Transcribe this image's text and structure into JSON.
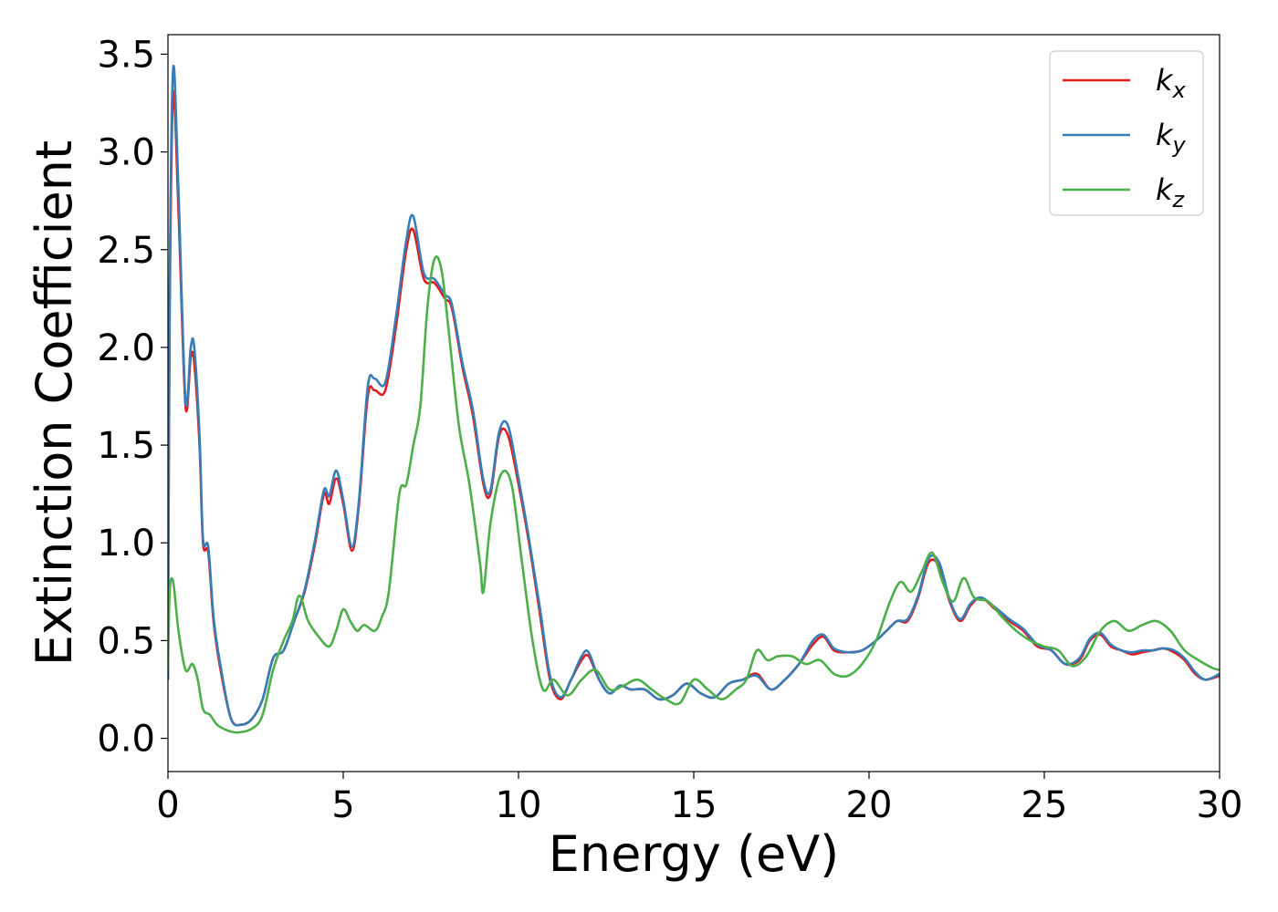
{
  "chart_data": {
    "type": "line",
    "title": "",
    "xlabel": "Energy (eV)",
    "ylabel": "Extinction Coefficient",
    "xlim": [
      0,
      30
    ],
    "ylim": [
      -0.17,
      3.6
    ],
    "xticks": [
      0,
      5,
      10,
      15,
      20,
      25,
      30
    ],
    "xtick_labels": [
      "0",
      "5",
      "10",
      "15",
      "20",
      "25",
      "30"
    ],
    "yticks": [
      0.0,
      0.5,
      1.0,
      1.5,
      2.0,
      2.5,
      3.0,
      3.5
    ],
    "ytick_labels": [
      "0.0",
      "0.5",
      "1.0",
      "1.5",
      "2.0",
      "2.5",
      "3.0",
      "3.5"
    ],
    "grid": false,
    "legend_position": "top-right",
    "series": [
      {
        "name": "k_x",
        "legend_base": "k",
        "legend_sub": "x",
        "color": "#e41a1c",
        "x": [
          0,
          0.05,
          0.15,
          0.3,
          0.5,
          0.65,
          0.75,
          0.9,
          1.0,
          1.15,
          1.3,
          1.5,
          1.8,
          2.1,
          2.4,
          2.7,
          3.0,
          3.3,
          3.6,
          3.9,
          4.2,
          4.45,
          4.6,
          4.8,
          5.0,
          5.25,
          5.45,
          5.7,
          5.9,
          6.2,
          6.5,
          6.8,
          7.0,
          7.3,
          7.6,
          7.9,
          8.1,
          8.4,
          8.7,
          9.0,
          9.2,
          9.45,
          9.7,
          10.0,
          10.3,
          10.6,
          10.9,
          11.2,
          11.5,
          11.8,
          12.0,
          12.3,
          12.6,
          12.9,
          13.2,
          13.6,
          14.0,
          14.4,
          14.8,
          15.2,
          15.6,
          16.0,
          16.4,
          16.8,
          17.2,
          17.6,
          18.0,
          18.4,
          18.7,
          19.0,
          19.4,
          19.8,
          20.2,
          20.5,
          20.8,
          21.1,
          21.4,
          21.7,
          22.0,
          22.3,
          22.6,
          22.9,
          23.2,
          23.6,
          24.0,
          24.4,
          24.8,
          25.2,
          25.6,
          26.0,
          26.3,
          26.6,
          26.9,
          27.2,
          27.5,
          27.8,
          28.1,
          28.4,
          28.7,
          29.0,
          29.3,
          29.6,
          30.0
        ],
        "y": [
          0.3,
          2.2,
          3.3,
          2.7,
          1.7,
          1.95,
          1.92,
          1.5,
          1.0,
          0.95,
          0.6,
          0.35,
          0.1,
          0.07,
          0.1,
          0.2,
          0.41,
          0.45,
          0.6,
          0.75,
          1.0,
          1.25,
          1.2,
          1.33,
          1.2,
          0.96,
          1.2,
          1.75,
          1.78,
          1.78,
          2.1,
          2.5,
          2.6,
          2.35,
          2.33,
          2.25,
          2.2,
          1.9,
          1.65,
          1.3,
          1.25,
          1.55,
          1.55,
          1.3,
          1.0,
          0.65,
          0.3,
          0.2,
          0.3,
          0.4,
          0.42,
          0.3,
          0.23,
          0.27,
          0.25,
          0.25,
          0.2,
          0.22,
          0.28,
          0.23,
          0.21,
          0.28,
          0.3,
          0.33,
          0.25,
          0.3,
          0.38,
          0.48,
          0.52,
          0.45,
          0.44,
          0.45,
          0.5,
          0.55,
          0.6,
          0.6,
          0.72,
          0.9,
          0.88,
          0.7,
          0.6,
          0.68,
          0.72,
          0.66,
          0.6,
          0.55,
          0.47,
          0.45,
          0.38,
          0.4,
          0.5,
          0.53,
          0.47,
          0.45,
          0.43,
          0.44,
          0.45,
          0.46,
          0.44,
          0.4,
          0.33,
          0.3,
          0.32
        ]
      },
      {
        "name": "k_y",
        "legend_base": "k",
        "legend_sub": "y",
        "color": "#377eb8",
        "x": [
          0,
          0.05,
          0.15,
          0.3,
          0.5,
          0.65,
          0.75,
          0.9,
          1.0,
          1.15,
          1.3,
          1.5,
          1.8,
          2.1,
          2.4,
          2.7,
          3.0,
          3.3,
          3.6,
          3.9,
          4.2,
          4.45,
          4.6,
          4.8,
          5.0,
          5.25,
          5.45,
          5.7,
          5.9,
          6.2,
          6.5,
          6.8,
          7.0,
          7.3,
          7.6,
          7.9,
          8.1,
          8.4,
          8.7,
          9.0,
          9.2,
          9.45,
          9.7,
          10.0,
          10.3,
          10.6,
          10.9,
          11.2,
          11.5,
          11.8,
          12.0,
          12.3,
          12.6,
          12.9,
          13.2,
          13.6,
          14.0,
          14.4,
          14.8,
          15.2,
          15.6,
          16.0,
          16.4,
          16.8,
          17.2,
          17.6,
          18.0,
          18.4,
          18.7,
          19.0,
          19.4,
          19.8,
          20.2,
          20.5,
          20.8,
          21.1,
          21.4,
          21.7,
          22.0,
          22.3,
          22.6,
          22.9,
          23.2,
          23.6,
          24.0,
          24.4,
          24.8,
          25.2,
          25.6,
          26.0,
          26.3,
          26.6,
          26.9,
          27.2,
          27.5,
          27.8,
          28.1,
          28.4,
          28.7,
          29.0,
          29.3,
          29.6,
          30.0
        ],
        "y": [
          0.3,
          2.3,
          3.43,
          2.8,
          1.73,
          2.0,
          2.0,
          1.55,
          1.02,
          0.98,
          0.62,
          0.37,
          0.1,
          0.07,
          0.1,
          0.2,
          0.41,
          0.45,
          0.6,
          0.76,
          1.02,
          1.27,
          1.24,
          1.37,
          1.22,
          0.98,
          1.22,
          1.8,
          1.84,
          1.82,
          2.15,
          2.55,
          2.67,
          2.38,
          2.35,
          2.27,
          2.22,
          1.92,
          1.68,
          1.32,
          1.27,
          1.57,
          1.6,
          1.33,
          1.02,
          0.68,
          0.32,
          0.21,
          0.3,
          0.42,
          0.44,
          0.3,
          0.23,
          0.27,
          0.25,
          0.25,
          0.2,
          0.22,
          0.28,
          0.23,
          0.21,
          0.28,
          0.3,
          0.32,
          0.25,
          0.3,
          0.38,
          0.5,
          0.53,
          0.46,
          0.44,
          0.45,
          0.5,
          0.55,
          0.6,
          0.61,
          0.73,
          0.92,
          0.9,
          0.71,
          0.61,
          0.69,
          0.72,
          0.67,
          0.61,
          0.56,
          0.48,
          0.45,
          0.38,
          0.41,
          0.51,
          0.54,
          0.48,
          0.45,
          0.44,
          0.45,
          0.45,
          0.46,
          0.45,
          0.41,
          0.34,
          0.3,
          0.33
        ]
      },
      {
        "name": "k_z",
        "legend_base": "k",
        "legend_sub": "z",
        "color": "#4daf4a",
        "x": [
          0,
          0.05,
          0.15,
          0.3,
          0.5,
          0.7,
          0.85,
          1.0,
          1.2,
          1.4,
          1.7,
          2.0,
          2.4,
          2.7,
          3.0,
          3.3,
          3.55,
          3.75,
          4.0,
          4.3,
          4.6,
          4.8,
          5.0,
          5.2,
          5.4,
          5.6,
          5.9,
          6.1,
          6.3,
          6.6,
          6.8,
          7.0,
          7.2,
          7.4,
          7.6,
          7.8,
          8.0,
          8.3,
          8.6,
          8.9,
          9.0,
          9.2,
          9.5,
          9.8,
          10.1,
          10.4,
          10.7,
          11.0,
          11.4,
          11.8,
          12.2,
          12.6,
          13.0,
          13.4,
          13.8,
          14.2,
          14.6,
          15.0,
          15.4,
          15.8,
          16.2,
          16.5,
          16.8,
          17.1,
          17.4,
          17.8,
          18.2,
          18.6,
          19.0,
          19.4,
          19.8,
          20.2,
          20.6,
          20.9,
          21.2,
          21.5,
          21.8,
          22.1,
          22.4,
          22.7,
          23.0,
          23.4,
          23.8,
          24.2,
          24.6,
          25.0,
          25.4,
          25.8,
          26.2,
          26.6,
          27.0,
          27.4,
          27.8,
          28.2,
          28.6,
          29.0,
          29.4,
          29.8,
          30.0
        ],
        "y": [
          0.35,
          0.75,
          0.8,
          0.55,
          0.35,
          0.38,
          0.3,
          0.15,
          0.12,
          0.07,
          0.04,
          0.03,
          0.05,
          0.12,
          0.35,
          0.5,
          0.6,
          0.73,
          0.6,
          0.52,
          0.47,
          0.55,
          0.66,
          0.6,
          0.55,
          0.58,
          0.55,
          0.62,
          0.75,
          1.25,
          1.3,
          1.5,
          1.7,
          2.2,
          2.45,
          2.4,
          2.1,
          1.6,
          1.3,
          0.9,
          0.75,
          1.1,
          1.35,
          1.3,
          0.9,
          0.5,
          0.25,
          0.3,
          0.22,
          0.3,
          0.35,
          0.25,
          0.27,
          0.3,
          0.25,
          0.2,
          0.18,
          0.3,
          0.25,
          0.2,
          0.25,
          0.3,
          0.45,
          0.4,
          0.42,
          0.42,
          0.38,
          0.4,
          0.33,
          0.32,
          0.38,
          0.5,
          0.7,
          0.8,
          0.75,
          0.85,
          0.95,
          0.8,
          0.7,
          0.82,
          0.72,
          0.7,
          0.62,
          0.55,
          0.5,
          0.47,
          0.45,
          0.37,
          0.42,
          0.55,
          0.6,
          0.55,
          0.58,
          0.6,
          0.55,
          0.45,
          0.4,
          0.36,
          0.35
        ]
      }
    ]
  }
}
